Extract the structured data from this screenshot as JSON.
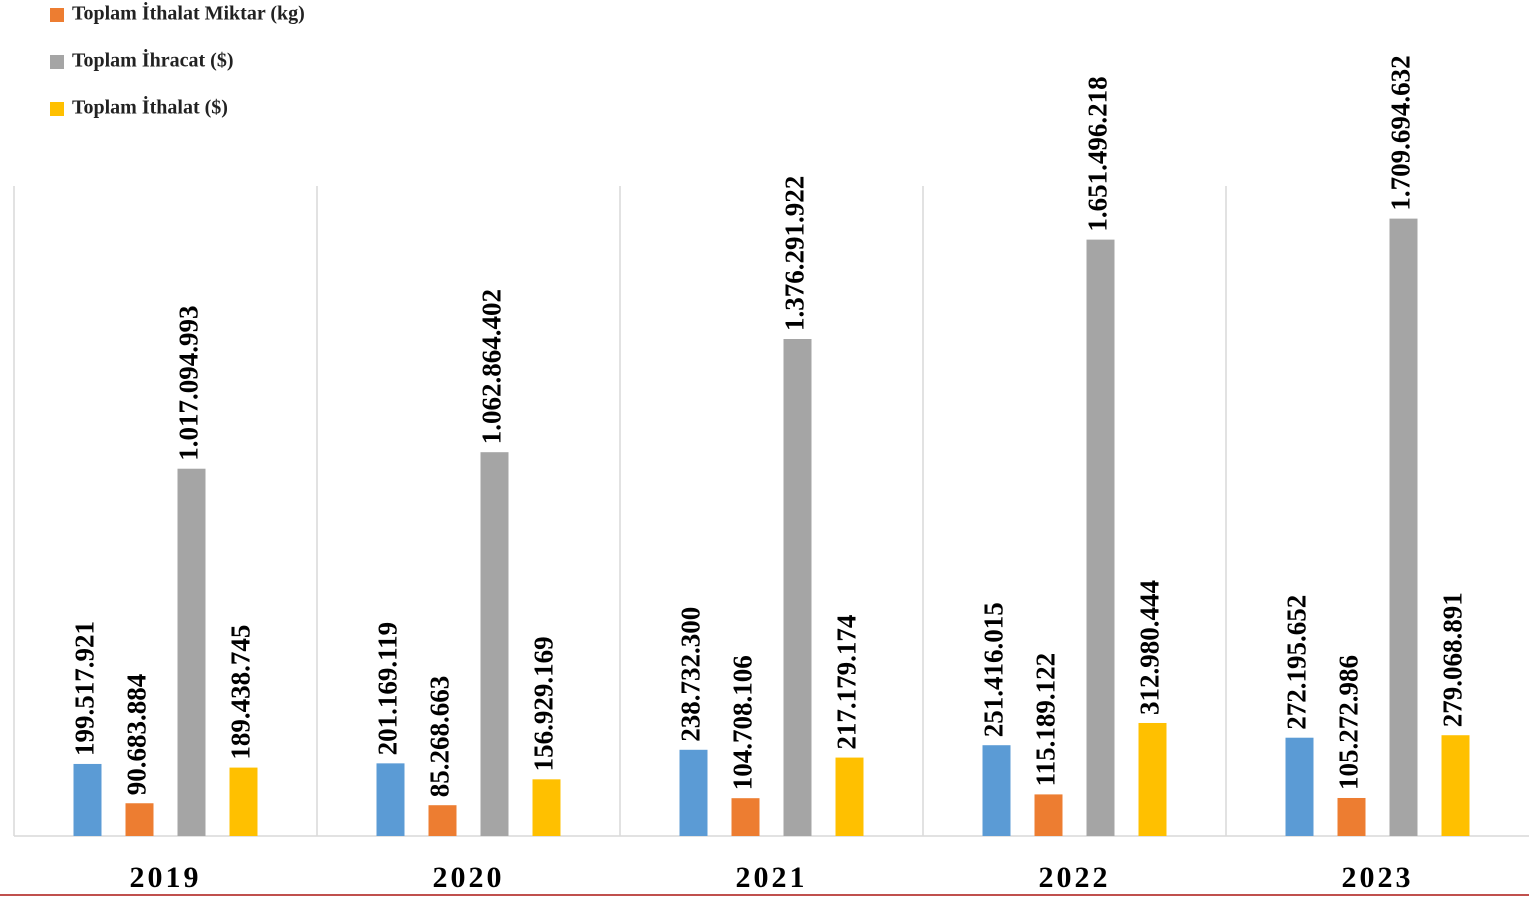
{
  "chart_data": {
    "type": "bar",
    "categories": [
      "2019",
      "2020",
      "2021",
      "2022",
      "2023"
    ],
    "series": [
      {
        "color": "#5b9bd5",
        "values": [
          199517921,
          201169119,
          238732300,
          251416015,
          272195652
        ],
        "value_labels": [
          "199.517.921",
          "201.169.119",
          "238.732.300",
          "251.416.015",
          "272.195.652"
        ]
      },
      {
        "name": "Toplam İthalat Miktar (kg)",
        "color": "#ed7d31",
        "values": [
          90683884,
          85268663,
          104708106,
          115189122,
          105272986
        ],
        "value_labels": [
          "90.683.884",
          "85.268.663",
          "104.708.106",
          "115.189.122",
          "105.272.986"
        ]
      },
      {
        "name": "Toplam İhracat ($)",
        "color": "#a5a5a5",
        "values": [
          1017094993,
          1062864402,
          1376291922,
          1651496218,
          1709694632
        ],
        "value_labels": [
          "1.017.094.993",
          "1.062.864.402",
          "1.376.291.922",
          "1.651.496.218",
          "1.709.694.632"
        ]
      },
      {
        "name": "Toplam İthalat ($)",
        "color": "#ffc000",
        "values": [
          189438745,
          156929169,
          217179174,
          312980444,
          279068891
        ],
        "value_labels": [
          "189.438.745",
          "156.929.169",
          "217.179.174",
          "312.980.444",
          "279.068.891"
        ]
      }
    ],
    "ylim": [
      0,
      1800000000
    ],
    "legend": "top-left"
  }
}
